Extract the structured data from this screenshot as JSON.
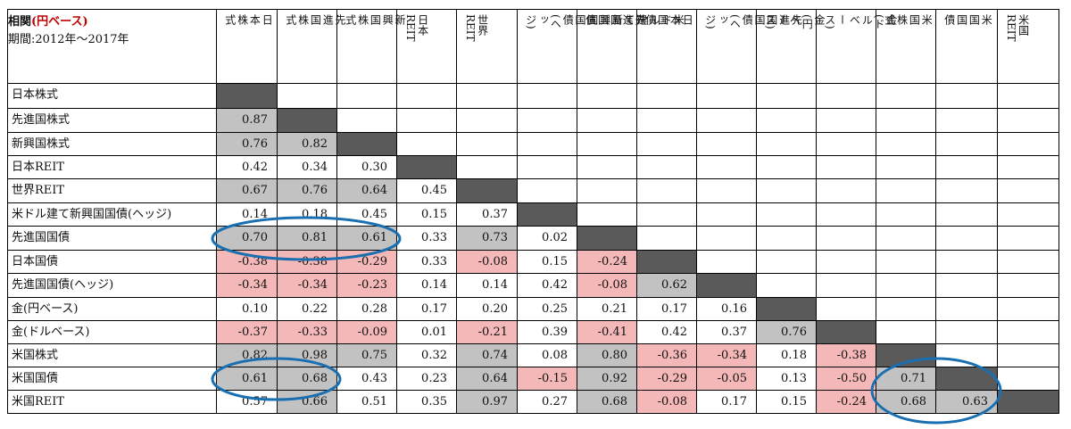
{
  "header": {
    "title_prefix": "相関",
    "title_highlight": "(円ベース)",
    "period": "期間:2012年～2017年"
  },
  "colors": {
    "diagonal": "#5a5a5a",
    "high_correlation": "#c2c2c2",
    "negative": "#f5b8b8",
    "ellipse": "#1a6fb0"
  },
  "chart_data": {
    "type": "table",
    "row_labels": [
      "日本株式",
      "先進国株式",
      "新興国株式",
      "日本REIT",
      "世界REIT",
      "米ドル建て新興国国債(ヘッジ)",
      "先進国国債",
      "日本国債",
      "先進国国債(ヘッジ)",
      "金(円ベース)",
      "金(ドルベース)",
      "米国株式",
      "米国国債",
      "米国REIT"
    ],
    "column_labels": [
      "日本株式",
      "先進国株\n式",
      "新興国株\n式",
      "日本REIT",
      "世界REIT",
      "米ドル建て\n新興国国債\n(ヘッジ)",
      "先進国国\n債",
      "日本国債",
      "先進国国\n債(ヘッジ)",
      "金(円\nベース)",
      "金(ドル\nベース)",
      "米国株式",
      "米国国債",
      "米国REIT"
    ],
    "values": [
      [],
      [
        "0.87"
      ],
      [
        "0.76",
        "0.82"
      ],
      [
        "0.42",
        "0.34",
        "0.30"
      ],
      [
        "0.67",
        "0.76",
        "0.64",
        "0.45"
      ],
      [
        "0.14",
        "0.18",
        "0.45",
        "0.15",
        "0.37"
      ],
      [
        "0.70",
        "0.81",
        "0.61",
        "0.33",
        "0.73",
        "0.02"
      ],
      [
        "-0.38",
        "-0.38",
        "-0.29",
        "0.33",
        "-0.08",
        "0.15",
        "-0.24"
      ],
      [
        "-0.34",
        "-0.34",
        "-0.23",
        "0.14",
        "0.14",
        "0.42",
        "-0.08",
        "0.62"
      ],
      [
        "0.10",
        "0.22",
        "0.28",
        "0.17",
        "0.20",
        "0.25",
        "0.21",
        "0.17",
        "0.16"
      ],
      [
        "-0.37",
        "-0.33",
        "-0.09",
        "0.01",
        "-0.21",
        "0.39",
        "-0.41",
        "0.42",
        "0.37",
        "0.76"
      ],
      [
        "0.82",
        "0.98",
        "0.75",
        "0.32",
        "0.74",
        "0.08",
        "0.80",
        "-0.36",
        "-0.34",
        "0.18",
        "-0.38"
      ],
      [
        "0.61",
        "0.68",
        "0.43",
        "0.23",
        "0.64",
        "-0.15",
        "0.92",
        "-0.29",
        "-0.05",
        "0.13",
        "-0.50",
        "0.71"
      ],
      [
        "0.57",
        "0.66",
        "0.51",
        "0.35",
        "0.97",
        "0.27",
        "0.68",
        "-0.08",
        "0.17",
        "0.15",
        "-0.24",
        "0.68",
        "0.63"
      ]
    ],
    "shading": [
      [],
      [
        "g"
      ],
      [
        "g",
        "g"
      ],
      [
        "",
        "",
        ""
      ],
      [
        "g",
        "g",
        "g",
        ""
      ],
      [
        "",
        "",
        "",
        "",
        ""
      ],
      [
        "g",
        "g",
        "g",
        "",
        "g",
        ""
      ],
      [
        "p",
        "p",
        "p",
        "",
        "p",
        "",
        "p"
      ],
      [
        "p",
        "p",
        "p",
        "",
        "",
        "",
        "p",
        "g"
      ],
      [
        "",
        "",
        "",
        "",
        "",
        "",
        "",
        "",
        ""
      ],
      [
        "p",
        "p",
        "p",
        "",
        "p",
        "",
        "p",
        "",
        "",
        "g"
      ],
      [
        "g",
        "g",
        "g",
        "",
        "g",
        "",
        "g",
        "p",
        "p",
        "",
        "p"
      ],
      [
        "g",
        "g",
        "",
        "",
        "g",
        "p",
        "g",
        "p",
        "p",
        "",
        "p",
        "g"
      ],
      [
        "",
        "g",
        "",
        "",
        "g",
        "",
        "g",
        "p",
        "",
        "",
        "p",
        "g",
        "g"
      ]
    ],
    "highlight_ellipses": [
      {
        "row_from": 6,
        "row_to": 6,
        "col_from": 0,
        "col_to": 2
      },
      {
        "row_from": 12,
        "row_to": 12,
        "col_from": 0,
        "col_to": 1
      },
      {
        "row_from": 12,
        "row_to": 13,
        "col_from": 11,
        "col_to": 12
      }
    ]
  }
}
